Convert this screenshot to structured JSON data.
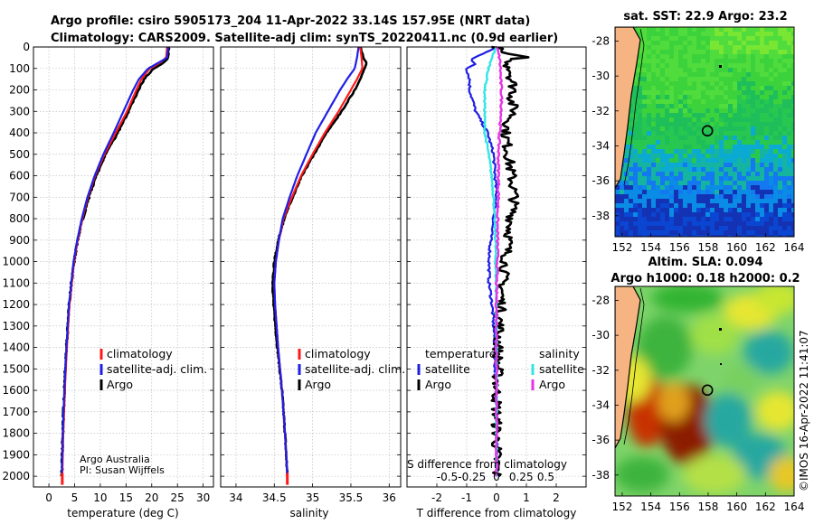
{
  "title": {
    "line1": "Argo profile: csiro 5905173_204 11-Apr-2022 33.14S 157.95E (NRT data)",
    "line2": "Climatology: CARS2009. Satellite-adj clim: synTS_20220411.nc (0.9d earlier)"
  },
  "credit": {
    "line1": "Argo Australia",
    "line2": "PI: Susan Wijffels"
  },
  "stamp": "©IMOS 16-Apr-2022 11:41:07",
  "colors": {
    "climatology": "#ff1a1a",
    "satellite": "#1f1fe6",
    "argo": "#000000",
    "sat_diff_s": "#33e6e6",
    "argo_diff_s": "#e633e6",
    "land": "#f5b482",
    "grid": "#b4b4b4"
  },
  "chart_data": [
    {
      "type": "line",
      "panel": "temperature",
      "xlabel": "temperature (deg C)",
      "ylabel": "",
      "xlim": [
        -3,
        32
      ],
      "ylim": [
        2050,
        0
      ],
      "xticks": [
        "0",
        "5",
        "10",
        "15",
        "20",
        "25",
        "30"
      ],
      "yticks": [
        "0",
        "100",
        "200",
        "300",
        "400",
        "500",
        "600",
        "700",
        "800",
        "900",
        "1000",
        "1100",
        "1200",
        "1300",
        "1400",
        "1500",
        "1600",
        "1700",
        "1800",
        "1900",
        "2000"
      ],
      "legend": [
        "climatology",
        "satellite-adj. clim.",
        "Argo"
      ],
      "series": [
        {
          "name": "climatology",
          "depth": [
            0,
            50,
            75,
            100,
            150,
            200,
            300,
            400,
            500,
            600,
            700,
            800,
            900,
            1000,
            1200,
            1400,
            1600,
            1800,
            2000
          ],
          "values": [
            23.0,
            22.8,
            21.5,
            19.6,
            18.0,
            17.0,
            15.2,
            13.0,
            10.8,
            9.0,
            7.6,
            6.5,
            5.6,
            4.9,
            4.0,
            3.5,
            3.1,
            2.8,
            2.6
          ]
        },
        {
          "name": "satellite-adj. clim.",
          "depth": [
            0,
            50,
            75,
            100,
            150,
            200,
            300,
            400,
            500,
            600,
            700,
            800,
            900,
            1000,
            1200,
            1400,
            1600,
            1800,
            2000
          ],
          "values": [
            23.2,
            23.0,
            21.2,
            19.3,
            17.5,
            16.4,
            14.5,
            12.6,
            10.6,
            8.9,
            7.5,
            6.4,
            5.5,
            4.8,
            3.9,
            3.4,
            3.0,
            2.7,
            2.5
          ]
        },
        {
          "name": "Argo",
          "depth": [
            0,
            50,
            75,
            100,
            150,
            200,
            300,
            400,
            500,
            600,
            700,
            800,
            900,
            1000,
            1200,
            1400,
            1600,
            1800,
            2000
          ],
          "values": [
            23.3,
            23.2,
            22.2,
            20.4,
            18.5,
            17.4,
            15.5,
            13.4,
            11.0,
            9.2,
            7.8,
            6.6,
            5.6,
            4.9,
            3.9,
            3.4,
            3.0,
            2.7,
            2.5
          ]
        }
      ]
    },
    {
      "type": "line",
      "panel": "salinity",
      "xlabel": "salinity",
      "ylabel": "",
      "xlim": [
        33.8,
        36.15
      ],
      "ylim": [
        2050,
        0
      ],
      "xticks": [
        "34",
        "34.5",
        "35",
        "35.5",
        "36"
      ],
      "legend": [
        "climatology",
        "satellite-adj. clim.",
        "Argo"
      ],
      "series": [
        {
          "name": "climatology",
          "depth": [
            0,
            50,
            100,
            150,
            200,
            300,
            400,
            500,
            600,
            700,
            800,
            900,
            1000,
            1100,
            1200,
            1400,
            1600,
            1800,
            2000
          ],
          "values": [
            35.62,
            35.64,
            35.65,
            35.58,
            35.5,
            35.34,
            35.16,
            35.0,
            34.85,
            34.73,
            34.62,
            34.56,
            34.52,
            34.5,
            34.51,
            34.55,
            34.6,
            34.64,
            34.67
          ]
        },
        {
          "name": "satellite-adj. clim.",
          "depth": [
            0,
            50,
            100,
            150,
            200,
            300,
            400,
            500,
            600,
            700,
            800,
            900,
            1000,
            1100,
            1200,
            1400,
            1600,
            1800,
            2000
          ],
          "values": [
            35.6,
            35.58,
            35.55,
            35.45,
            35.36,
            35.2,
            35.04,
            34.92,
            34.8,
            34.7,
            34.61,
            34.56,
            34.52,
            34.5,
            34.51,
            34.55,
            34.6,
            34.64,
            34.67
          ]
        },
        {
          "name": "Argo",
          "depth": [
            0,
            50,
            75,
            100,
            150,
            200,
            300,
            400,
            500,
            600,
            700,
            800,
            900,
            1000,
            1100,
            1200,
            1400,
            1600,
            1800,
            2000
          ],
          "values": [
            35.63,
            35.66,
            35.7,
            35.68,
            35.62,
            35.55,
            35.38,
            35.18,
            35.02,
            34.86,
            34.74,
            34.63,
            34.55,
            34.5,
            34.48,
            34.49,
            34.54,
            34.6,
            34.64,
            34.67
          ]
        }
      ]
    },
    {
      "type": "line",
      "panel": "difference",
      "xlabel": "T difference from climatology",
      "top_label": "S difference from climatology",
      "xlim": [
        -3,
        3
      ],
      "ylim": [
        2050,
        0
      ],
      "xticks": [
        "-2",
        "-1",
        "0",
        "1",
        "2"
      ],
      "s_xticks": [
        "-0.5",
        "-0.25",
        "0",
        "0.25",
        "0.5"
      ],
      "legend_temperature": {
        "title": "temperature",
        "items": [
          "satellite",
          "Argo"
        ]
      },
      "legend_salinity": {
        "title": "salinity",
        "items": [
          "satellite",
          "Argo"
        ]
      },
      "series": [
        {
          "name": "satellite T diff",
          "depth": [
            0,
            30,
            60,
            80,
            100,
            150,
            200,
            250,
            300,
            350,
            400,
            450,
            500,
            600,
            700,
            800,
            900,
            1000,
            1100,
            1200,
            1300,
            1400,
            1500,
            1600,
            1700,
            1800,
            1900,
            2000
          ],
          "values": [
            0.0,
            -0.4,
            -0.9,
            -0.7,
            -1.0,
            -0.9,
            -0.9,
            -0.8,
            -0.7,
            -0.5,
            -0.3,
            -0.2,
            -0.1,
            -0.05,
            0.0,
            -0.1,
            -0.2,
            -0.25,
            -0.25,
            -0.15,
            -0.1,
            -0.05,
            -0.05,
            0.0,
            0.0,
            0.0,
            0.0,
            0.0
          ]
        },
        {
          "name": "Argo T diff",
          "depth": [
            0,
            30,
            50,
            60,
            80,
            100,
            150,
            200,
            250,
            300,
            350,
            400,
            500,
            600,
            700,
            800,
            900,
            1000,
            1100,
            1200,
            1300,
            1400,
            1500,
            1600,
            1700,
            1800,
            1900,
            2000
          ],
          "values": [
            0.0,
            0.2,
            1.0,
            0.4,
            0.3,
            0.5,
            0.5,
            0.6,
            0.5,
            0.6,
            0.4,
            0.3,
            0.4,
            0.5,
            0.6,
            0.5,
            0.4,
            0.3,
            0.2,
            0.15,
            0.1,
            0.05,
            0.05,
            0.0,
            0.0,
            0.0,
            0.0,
            0.0
          ]
        },
        {
          "name": "satellite S diff",
          "depth": [
            0,
            50,
            100,
            150,
            200,
            300,
            400,
            500,
            600,
            700,
            800,
            900,
            1000,
            1200,
            1400,
            1600,
            1800,
            2000
          ],
          "values": [
            0.0,
            -0.05,
            -0.08,
            -0.1,
            -0.12,
            -0.12,
            -0.12,
            -0.08,
            -0.05,
            -0.03,
            -0.02,
            -0.01,
            -0.01,
            0.0,
            0.0,
            0.0,
            0.0,
            0.0
          ]
        },
        {
          "name": "Argo S diff",
          "depth": [
            0,
            50,
            100,
            150,
            200,
            300,
            400,
            500,
            600,
            700,
            800,
            900,
            1000,
            1100,
            1200,
            1400,
            1600,
            1800,
            2000
          ],
          "values": [
            0.0,
            0.03,
            0.04,
            0.04,
            0.05,
            0.05,
            0.03,
            0.02,
            0.02,
            0.02,
            0.01,
            0.01,
            0.01,
            0.0,
            0.0,
            0.0,
            0.0,
            0.0,
            0.0
          ]
        }
      ]
    },
    {
      "type": "heatmap",
      "panel": "sst_map",
      "title": "sat. SST: 22.9 Argo: 23.2",
      "xlim": [
        151.5,
        164
      ],
      "ylim": [
        -39.2,
        -27.2
      ],
      "xticks": [
        "152",
        "154",
        "156",
        "158",
        "160",
        "162",
        "164"
      ],
      "yticks": [
        "-28",
        "-30",
        "-32",
        "-34",
        "-36",
        "-38"
      ],
      "marker": {
        "lon": 157.95,
        "lat": -33.14
      }
    },
    {
      "type": "heatmap",
      "panel": "sla_map",
      "title_line1": "Altim. SLA: 0.094",
      "title_line2": "Argo h1000: 0.18 h2000: 0.2",
      "xlim": [
        151.5,
        164
      ],
      "ylim": [
        -39.2,
        -27.2
      ],
      "xticks": [
        "152",
        "154",
        "156",
        "158",
        "160",
        "162",
        "164"
      ],
      "yticks": [
        "-28",
        "-30",
        "-32",
        "-34",
        "-36",
        "-38"
      ],
      "marker": {
        "lon": 157.95,
        "lat": -33.14
      }
    }
  ]
}
